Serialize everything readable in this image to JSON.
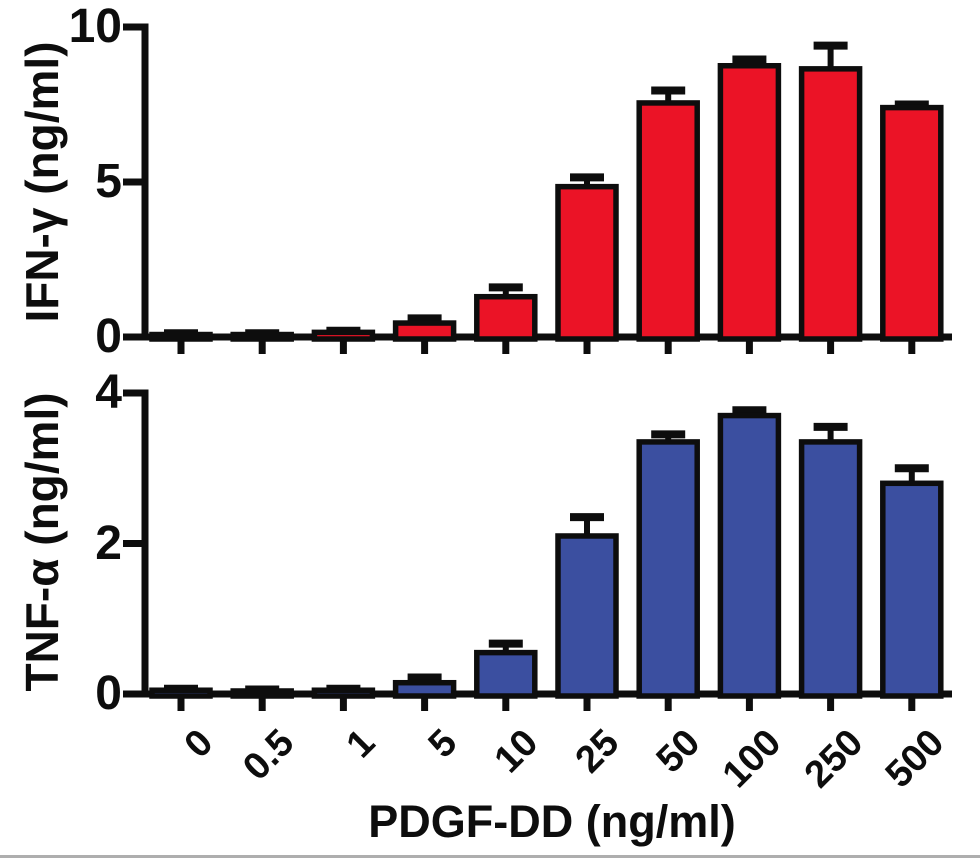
{
  "figure": {
    "xlabel": "PDGF-DD (ng/ml)",
    "background_color": "#ffffff",
    "ink_color": "#0d0d0d",
    "bottom_rule_color": "#aeaeae"
  },
  "chart_data": [
    {
      "type": "bar",
      "title": "",
      "ylabel": "IFN-γ (ng/ml)",
      "xlabel": "PDGF-DD (ng/ml)",
      "categories": [
        "0",
        "0.5",
        "1",
        "5",
        "10",
        "25",
        "50",
        "100",
        "250",
        "500"
      ],
      "values": [
        0.08,
        0.08,
        0.15,
        0.45,
        1.3,
        4.85,
        7.55,
        8.75,
        8.65,
        7.4
      ],
      "errors": [
        0.04,
        0.04,
        0.05,
        0.15,
        0.3,
        0.3,
        0.4,
        0.2,
        0.75,
        0.1
      ],
      "bar_color": "#EB1326",
      "ylim": [
        0,
        10
      ],
      "yticks": [
        0,
        5,
        10
      ],
      "grid": false,
      "legend": "none"
    },
    {
      "type": "bar",
      "title": "",
      "ylabel": "TNF-α (ng/ml)",
      "xlabel": "PDGF-DD (ng/ml)",
      "categories": [
        "0",
        "0.5",
        "1",
        "5",
        "10",
        "25",
        "50",
        "100",
        "250",
        "500"
      ],
      "values": [
        0.05,
        0.04,
        0.05,
        0.15,
        0.55,
        2.1,
        3.35,
        3.7,
        3.35,
        2.8
      ],
      "errors": [
        0.02,
        0.02,
        0.02,
        0.07,
        0.12,
        0.25,
        0.1,
        0.07,
        0.2,
        0.2
      ],
      "bar_color": "#3B4FA0",
      "ylim": [
        0,
        4
      ],
      "yticks": [
        0,
        2,
        4
      ],
      "grid": false,
      "legend": "none"
    }
  ]
}
